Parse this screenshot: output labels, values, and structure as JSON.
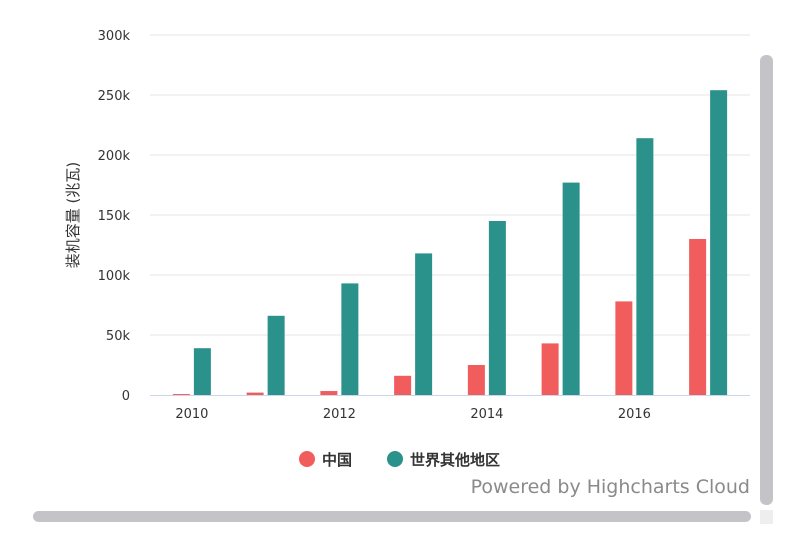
{
  "chart_data": {
    "type": "bar",
    "x": [
      2010,
      2011,
      2012,
      2013,
      2014,
      2015,
      2016,
      2017
    ],
    "x_tick_labels": [
      "2010",
      "2012",
      "2014",
      "2016"
    ],
    "x_ticks": [
      2010,
      2012,
      2014,
      2016
    ],
    "ylabel": "装机容量 (兆瓦)",
    "ylim": [
      0,
      300000
    ],
    "y_ticks": [
      0,
      50000,
      100000,
      150000,
      200000,
      250000,
      300000
    ],
    "y_tick_labels": [
      "0",
      "50k",
      "100k",
      "150k",
      "200k",
      "250k",
      "300k"
    ],
    "grid": true,
    "legend_position": "bottom-center",
    "series": [
      {
        "name": "中国",
        "color": "#f15c5c",
        "values": [
          800,
          2000,
          3300,
          16000,
          25000,
          43000,
          78000,
          130000
        ]
      },
      {
        "name": "世界其他地区",
        "color": "#2a918b",
        "values": [
          39000,
          66000,
          93000,
          118000,
          145000,
          177000,
          214000,
          254000
        ]
      }
    ]
  },
  "credits": "Powered by Highcharts Cloud"
}
